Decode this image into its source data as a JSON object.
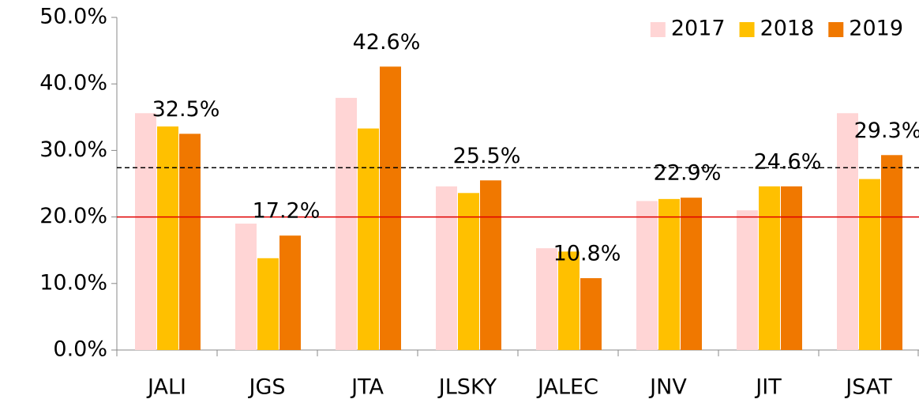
{
  "chart_data": {
    "type": "bar",
    "categories": [
      "JALI",
      "JGS",
      "JTA",
      "JLSKY",
      "JALEC",
      "JNV",
      "JIT",
      "JSAT"
    ],
    "series": [
      {
        "name": "2017",
        "color": "#ffd5d5",
        "values": [
          35.6,
          19.0,
          37.9,
          24.6,
          15.3,
          22.4,
          21.0,
          35.6
        ]
      },
      {
        "name": "2018",
        "color": "#ffc000",
        "values": [
          33.6,
          13.8,
          33.3,
          23.6,
          14.8,
          22.7,
          24.6,
          25.7
        ]
      },
      {
        "name": "2019",
        "color": "#f07800",
        "values": [
          32.5,
          17.2,
          42.6,
          25.5,
          10.8,
          22.9,
          24.6,
          29.3
        ],
        "value_labels": [
          "32.5%",
          "17.2%",
          "42.6%",
          "25.5%",
          "10.8%",
          "22.9%",
          "24.6%",
          "29.3%"
        ]
      }
    ],
    "ylim": [
      0,
      50
    ],
    "yticks": [
      {
        "value": 0,
        "label": "0.0%"
      },
      {
        "value": 10,
        "label": "10.0%"
      },
      {
        "value": 20,
        "label": "20.0%"
      },
      {
        "value": 30,
        "label": "30.0%"
      },
      {
        "value": 40,
        "label": "40.0%"
      },
      {
        "value": 50,
        "label": "50.0%"
      }
    ],
    "reference_lines": [
      {
        "value": 27.4,
        "color": "#000000",
        "dashed": true
      },
      {
        "value": 20,
        "color": "#e00000",
        "dashed": false
      }
    ],
    "legend": "top-right"
  }
}
